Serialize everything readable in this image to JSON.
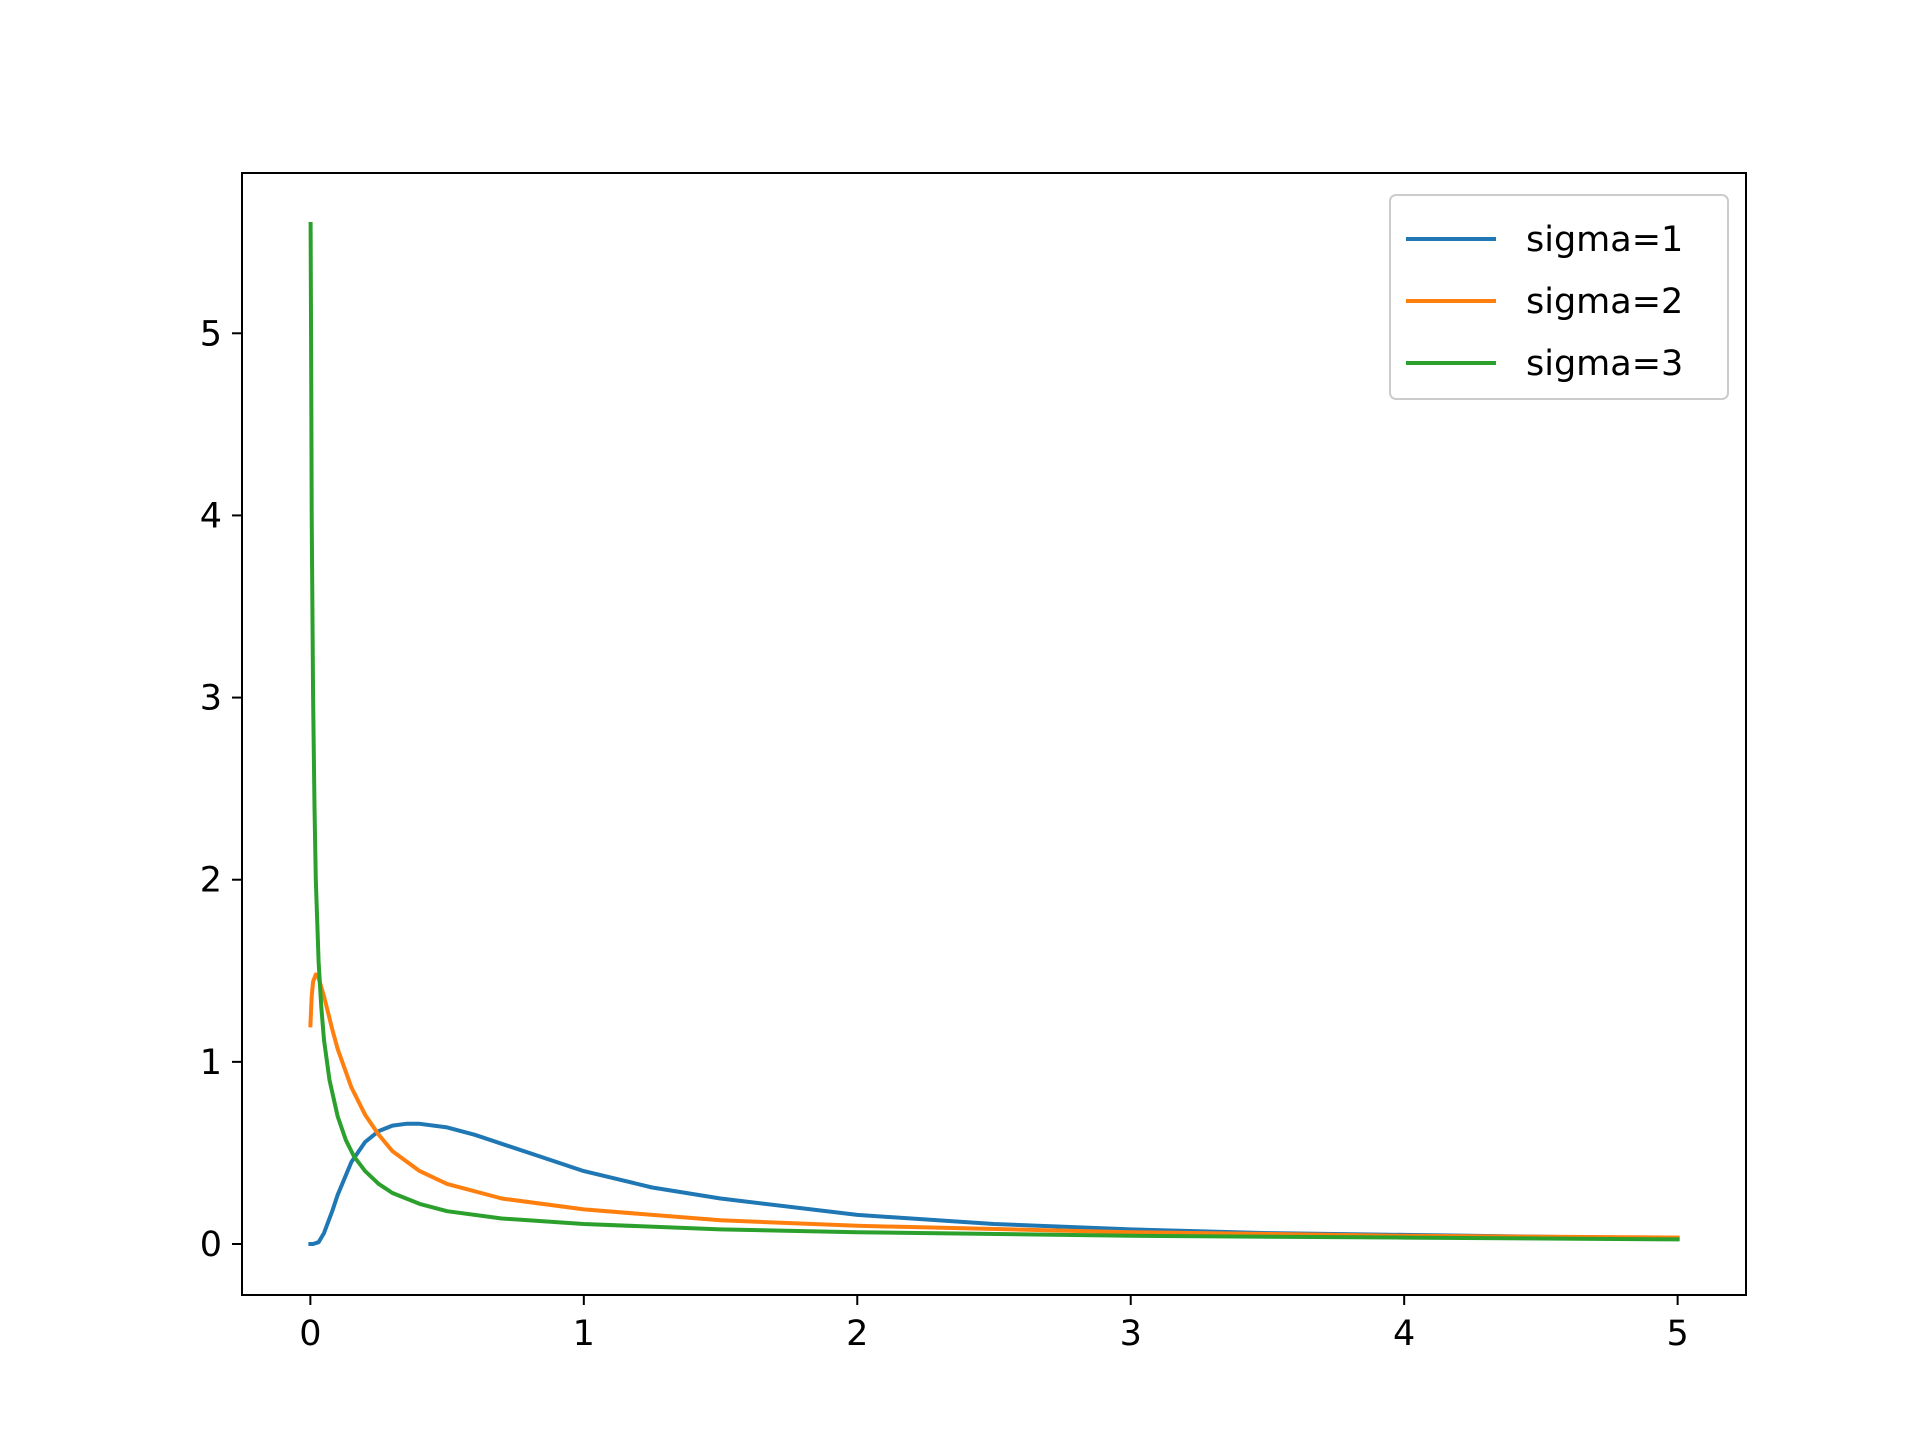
{
  "chart_data": {
    "type": "line",
    "title": "",
    "xlabel": "",
    "ylabel": "",
    "xlim": [
      -0.25,
      5.25
    ],
    "ylim": [
      -0.28,
      5.88
    ],
    "xticks": [
      0,
      1,
      2,
      3,
      4,
      5
    ],
    "yticks": [
      0,
      1,
      2,
      3,
      4,
      5
    ],
    "xtick_labels": [
      "0",
      "1",
      "2",
      "3",
      "4",
      "5"
    ],
    "ytick_labels": [
      "0",
      "1",
      "2",
      "3",
      "4",
      "5"
    ],
    "grid": false,
    "legend": "upper right",
    "series": [
      {
        "name": "sigma=1",
        "color": "#1f77b4",
        "x": [
          0,
          0.01,
          0.03,
          0.05,
          0.08,
          0.1,
          0.15,
          0.2,
          0.25,
          0.3,
          0.35,
          0.4,
          0.5,
          0.6,
          0.8,
          1.0,
          1.25,
          1.5,
          2.0,
          2.5,
          3.0,
          3.5,
          4.0,
          4.5,
          5.0
        ],
        "y": [
          0,
          0,
          0.01,
          0.06,
          0.18,
          0.27,
          0.45,
          0.56,
          0.62,
          0.65,
          0.66,
          0.66,
          0.64,
          0.6,
          0.5,
          0.4,
          0.31,
          0.25,
          0.16,
          0.11,
          0.08,
          0.06,
          0.05,
          0.04,
          0.03
        ]
      },
      {
        "name": "sigma=2",
        "color": "#ff7f0e",
        "x": [
          0,
          0.005,
          0.01,
          0.02,
          0.03,
          0.05,
          0.08,
          0.1,
          0.15,
          0.2,
          0.25,
          0.3,
          0.4,
          0.5,
          0.7,
          1.0,
          1.5,
          2.0,
          3.0,
          4.0,
          5.0
        ],
        "y": [
          1.2,
          1.36,
          1.44,
          1.48,
          1.46,
          1.36,
          1.18,
          1.07,
          0.86,
          0.71,
          0.6,
          0.51,
          0.4,
          0.33,
          0.25,
          0.19,
          0.13,
          0.1,
          0.065,
          0.045,
          0.035
        ]
      },
      {
        "name": "sigma=3",
        "color": "#2ca02c",
        "x": [
          0.001,
          0.003,
          0.005,
          0.01,
          0.015,
          0.02,
          0.03,
          0.04,
          0.05,
          0.07,
          0.1,
          0.13,
          0.16,
          0.2,
          0.25,
          0.3,
          0.4,
          0.5,
          0.7,
          1.0,
          1.5,
          2.0,
          3.0,
          4.0,
          5.0
        ],
        "y": [
          5.6,
          4.8,
          4.0,
          3.0,
          2.4,
          2.0,
          1.55,
          1.3,
          1.12,
          0.9,
          0.7,
          0.57,
          0.48,
          0.4,
          0.33,
          0.28,
          0.22,
          0.18,
          0.14,
          0.11,
          0.08,
          0.065,
          0.045,
          0.035,
          0.025
        ]
      }
    ]
  }
}
